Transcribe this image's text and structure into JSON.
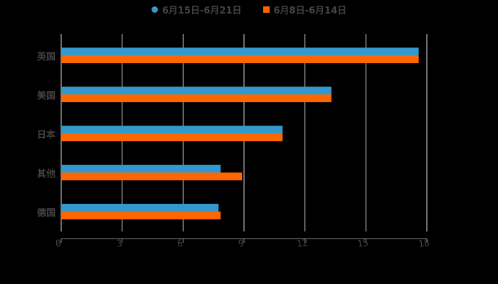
{
  "chart_data": {
    "type": "bar",
    "orientation": "horizontal",
    "title": "",
    "xlabel": "",
    "ylabel": "",
    "categories": [
      "英国",
      "美国",
      "日本",
      "其他",
      "德国"
    ],
    "series": [
      {
        "name": "6月15日-6月21日",
        "color": "#3399cc",
        "values": [
          17.6,
          13.3,
          10.9,
          7.85,
          7.75
        ]
      },
      {
        "name": "6月8日-6月14日",
        "color": "#ff6600",
        "values": [
          17.6,
          13.3,
          10.9,
          8.9,
          7.85
        ]
      }
    ],
    "xlim": [
      0,
      18
    ],
    "xticks": [
      "0",
      "3",
      "6",
      "9",
      "12",
      "15",
      "18"
    ],
    "grid": true,
    "legend_position": "top"
  },
  "colors": {
    "background": "#000000",
    "grid": "#d9d9d9",
    "text": "#444444"
  }
}
